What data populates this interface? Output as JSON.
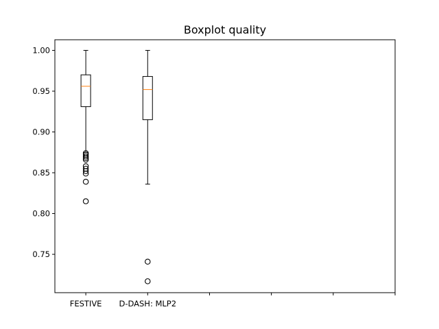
{
  "chart_data": {
    "type": "boxplot",
    "title": "Boxplot quality",
    "xlabel": "",
    "ylabel": "",
    "ylim": [
      0.703,
      1.013
    ],
    "yticks": [
      0.75,
      0.8,
      0.85,
      0.9,
      0.95,
      1.0
    ],
    "ytick_labels": [
      "0.75",
      "0.80",
      "0.85",
      "0.90",
      "0.95",
      "1.00"
    ],
    "xlim": [
      0.5,
      6.0
    ],
    "xticks": [
      1,
      2,
      3,
      4,
      5,
      6
    ],
    "xtick_labels": [
      "FESTIVE",
      "D-DASH: MLP2",
      "",
      "",
      "",
      ""
    ],
    "grid": false,
    "series": [
      {
        "category": "FESTIVE",
        "whisker_low": 0.875,
        "q1": 0.931,
        "median": 0.956,
        "q3": 0.97,
        "whisker_high": 1.0,
        "outliers": [
          0.874,
          0.872,
          0.87,
          0.868,
          0.866,
          0.858,
          0.855,
          0.852,
          0.849,
          0.839,
          0.815
        ]
      },
      {
        "category": "D-DASH: MLP2",
        "whisker_low": 0.836,
        "q1": 0.915,
        "median": 0.952,
        "q3": 0.968,
        "whisker_high": 1.0,
        "outliers": [
          0.741,
          0.717
        ]
      }
    ],
    "colors": {
      "box": "#000000",
      "median": "#ff7f0e",
      "outlier": "#000000"
    }
  }
}
